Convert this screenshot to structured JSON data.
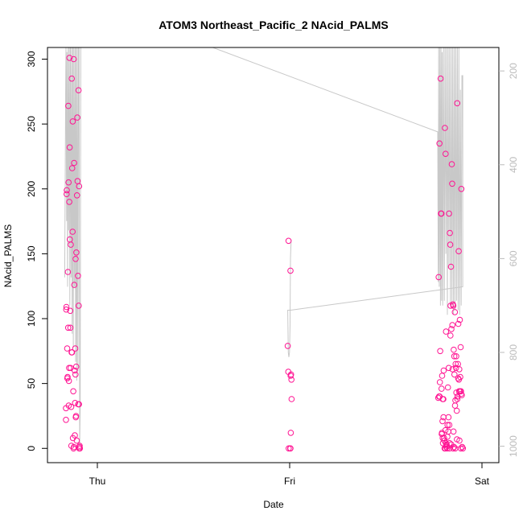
{
  "chart_data": {
    "type": "scatter",
    "title": "ATOM3 Northeast_Pacific_2 NAcid_PALMS",
    "xlabel": "Date",
    "ylabel": "NAcid_PALMS",
    "x_ticks": [
      "Thu",
      "Fri",
      "Sat"
    ],
    "y_ticks": [
      0,
      50,
      100,
      150,
      200,
      250,
      300
    ],
    "y2_ticks": [
      200,
      400,
      600,
      800,
      1000
    ],
    "ylim": [
      -11,
      309
    ],
    "y2lim": [
      1035,
      150
    ],
    "xlim": [
      -0.2,
      2.1
    ],
    "grid": false,
    "legend": "none",
    "colors": {
      "points": "#ff1493",
      "altitude_line": "#c8c8c8",
      "right_axis": "#bbbbbb",
      "axis": "#000000"
    },
    "series": [
      {
        "values": [
          [
            -0.163,
            31
          ],
          [
            -0.163,
            22
          ],
          [
            -0.162,
            107
          ],
          [
            -0.161,
            109
          ],
          [
            -0.16,
            196
          ],
          [
            -0.159,
            199
          ],
          [
            -0.157,
            77
          ],
          [
            -0.156,
            54
          ],
          [
            -0.155,
            55
          ],
          [
            -0.153,
            136
          ],
          [
            -0.152,
            93
          ],
          [
            -0.151,
            264
          ],
          [
            -0.15,
            205
          ],
          [
            -0.149,
            33
          ],
          [
            -0.148,
            52
          ],
          [
            -0.147,
            62
          ],
          [
            -0.146,
            190
          ],
          [
            -0.145,
            301
          ],
          [
            -0.144,
            232
          ],
          [
            -0.143,
            161
          ],
          [
            -0.141,
            106
          ],
          [
            -0.14,
            93
          ],
          [
            -0.139,
            62
          ],
          [
            -0.138,
            157
          ],
          [
            -0.136,
            32
          ],
          [
            -0.135,
            2
          ],
          [
            -0.134,
            74
          ],
          [
            -0.133,
            285
          ],
          [
            -0.132,
            74
          ],
          [
            -0.131,
            216
          ],
          [
            -0.129,
            167
          ],
          [
            -0.128,
            252
          ],
          [
            -0.127,
            8
          ],
          [
            -0.125,
            44
          ],
          [
            -0.124,
            0
          ],
          [
            -0.123,
            300
          ],
          [
            -0.122,
            1
          ],
          [
            -0.121,
            220
          ],
          [
            -0.12,
            126
          ],
          [
            -0.118,
            60
          ],
          [
            -0.117,
            10
          ],
          [
            -0.116,
            35
          ],
          [
            -0.115,
            77
          ],
          [
            -0.114,
            57
          ],
          [
            -0.113,
            146
          ],
          [
            -0.112,
            24
          ],
          [
            -0.111,
            25
          ],
          [
            -0.11,
            63
          ],
          [
            -0.109,
            151
          ],
          [
            -0.107,
            6
          ],
          [
            -0.106,
            195
          ],
          [
            -0.104,
            255
          ],
          [
            -0.103,
            206
          ],
          [
            -0.101,
            133
          ],
          [
            -0.099,
            34
          ],
          [
            -0.098,
            276
          ],
          [
            -0.097,
            110
          ],
          [
            -0.096,
            34
          ],
          [
            -0.095,
            202
          ],
          [
            -0.094,
            0
          ],
          [
            -0.093,
            1
          ],
          [
            -0.092,
            2
          ],
          [
            -0.091,
            0
          ],
          [
            0.99,
            79
          ],
          [
            0.993,
            59
          ],
          [
            0.994,
            160
          ],
          [
            0.995,
            0
          ],
          [
            1.003,
            0
          ],
          [
            1.004,
            137
          ],
          [
            1.005,
            56
          ],
          [
            1.006,
            12
          ],
          [
            1.007,
            57
          ],
          [
            1.009,
            53
          ],
          [
            1.01,
            38
          ],
          [
            1.004,
            0
          ],
          [
            1.773,
            39
          ],
          [
            1.775,
            132
          ],
          [
            1.777,
            40
          ],
          [
            1.779,
            235
          ],
          [
            1.781,
            51
          ],
          [
            1.783,
            75
          ],
          [
            1.785,
            285
          ],
          [
            1.787,
            181
          ],
          [
            1.789,
            181
          ],
          [
            1.791,
            11
          ],
          [
            1.793,
            56
          ],
          [
            1.795,
            21
          ],
          [
            1.797,
            4
          ],
          [
            1.799,
            38
          ],
          [
            1.801,
            60
          ],
          [
            1.803,
            8
          ],
          [
            1.805,
            6
          ],
          [
            1.807,
            247
          ],
          [
            1.809,
            0
          ],
          [
            1.811,
            227
          ],
          [
            1.813,
            90
          ],
          [
            1.815,
            1
          ],
          [
            1.817,
            2
          ],
          [
            1.819,
            0
          ],
          [
            1.821,
            18
          ],
          [
            1.823,
            47
          ],
          [
            1.825,
            13
          ],
          [
            1.827,
            62
          ],
          [
            1.829,
            181
          ],
          [
            1.831,
            0
          ],
          [
            1.833,
            166
          ],
          [
            1.835,
            157
          ],
          [
            1.837,
            110
          ],
          [
            1.839,
            140
          ],
          [
            1.841,
            92
          ],
          [
            1.843,
            219
          ],
          [
            1.845,
            204
          ],
          [
            1.847,
            61
          ],
          [
            1.849,
            111
          ],
          [
            1.851,
            110
          ],
          [
            1.853,
            76
          ],
          [
            1.855,
            1
          ],
          [
            1.857,
            57
          ],
          [
            1.859,
            105
          ],
          [
            1.861,
            0
          ],
          [
            1.863,
            65
          ],
          [
            1.865,
            62
          ],
          [
            1.867,
            43
          ],
          [
            1.869,
            29
          ],
          [
            1.871,
            266
          ],
          [
            1.873,
            40
          ],
          [
            1.875,
            65
          ],
          [
            1.877,
            96
          ],
          [
            1.879,
            152
          ],
          [
            1.881,
            44
          ],
          [
            1.883,
            6
          ],
          [
            1.885,
            99
          ],
          [
            1.887,
            55
          ],
          [
            1.889,
            78
          ],
          [
            1.891,
            44
          ],
          [
            1.893,
            200
          ],
          [
            1.895,
            41
          ],
          [
            1.897,
            1
          ],
          [
            1.901,
            0
          ],
          [
            1.78,
            40
          ],
          [
            1.79,
            46
          ],
          [
            1.8,
            24
          ],
          [
            1.81,
            14
          ],
          [
            1.82,
            9
          ],
          [
            1.83,
            18
          ],
          [
            1.84,
            3
          ],
          [
            1.85,
            0
          ],
          [
            1.86,
            33
          ],
          [
            1.87,
            7
          ],
          [
            1.88,
            53
          ],
          [
            1.89,
            0
          ],
          [
            1.792,
            12
          ],
          [
            1.796,
            8
          ],
          [
            1.806,
            0
          ],
          [
            1.816,
            3
          ],
          [
            1.826,
            24
          ],
          [
            1.836,
            87
          ],
          [
            1.846,
            95
          ],
          [
            1.856,
            71
          ],
          [
            1.866,
            71
          ],
          [
            1.876,
            54
          ],
          [
            1.886,
            44
          ],
          [
            1.796,
            38
          ],
          [
            1.812,
            4
          ],
          [
            1.832,
            4
          ],
          [
            1.852,
            13
          ],
          [
            1.862,
            37
          ],
          [
            1.872,
            38
          ],
          [
            1.882,
            61
          ],
          [
            1.892,
            42
          ]
        ]
      }
    ],
    "altitude_line": [
      [
        -0.17,
        640
      ],
      [
        -0.165,
        250
      ],
      [
        -0.163,
        120
      ],
      [
        -0.16,
        520
      ],
      [
        -0.158,
        160
      ],
      [
        -0.155,
        660
      ],
      [
        -0.152,
        120
      ],
      [
        -0.149,
        540
      ],
      [
        -0.146,
        150
      ],
      [
        -0.143,
        700
      ],
      [
        -0.14,
        130
      ],
      [
        -0.137,
        640
      ],
      [
        -0.134,
        150
      ],
      [
        -0.131,
        760
      ],
      [
        -0.128,
        120
      ],
      [
        -0.125,
        790
      ],
      [
        -0.122,
        140
      ],
      [
        -0.119,
        660
      ],
      [
        -0.116,
        120
      ],
      [
        -0.113,
        820
      ],
      [
        -0.11,
        140
      ],
      [
        -0.107,
        860
      ],
      [
        -0.104,
        130
      ],
      [
        -0.101,
        840
      ],
      [
        -0.098,
        130
      ],
      [
        -0.095,
        140
      ],
      [
        -0.092,
        1000
      ],
      [
        -0.089,
        920
      ],
      [
        -0.086,
        150
      ],
      [
        0.6,
        150
      ],
      [
        1.77,
        330
      ],
      [
        1.773,
        650
      ],
      [
        1.775,
        140
      ],
      [
        1.778,
        660
      ],
      [
        1.781,
        140
      ],
      [
        1.784,
        700
      ],
      [
        1.787,
        130
      ],
      [
        1.79,
        690
      ],
      [
        1.793,
        160
      ],
      [
        1.796,
        700
      ],
      [
        1.8,
        140
      ],
      [
        1.804,
        690
      ],
      [
        1.808,
        150
      ],
      [
        1.812,
        590
      ],
      [
        1.816,
        130
      ],
      [
        1.82,
        720
      ],
      [
        1.824,
        140
      ],
      [
        1.828,
        620
      ],
      [
        1.832,
        150
      ],
      [
        1.836,
        700
      ],
      [
        1.84,
        130
      ],
      [
        1.844,
        700
      ],
      [
        1.848,
        140
      ],
      [
        1.852,
        720
      ],
      [
        1.856,
        140
      ],
      [
        1.86,
        710
      ],
      [
        1.864,
        150
      ],
      [
        1.868,
        690
      ],
      [
        1.872,
        140
      ],
      [
        1.876,
        710
      ],
      [
        1.88,
        130
      ],
      [
        1.884,
        720
      ],
      [
        1.888,
        240
      ],
      [
        1.892,
        700
      ],
      [
        1.896,
        210
      ],
      [
        1.9,
        210
      ],
      [
        1.9,
        660
      ],
      [
        1.005,
        710
      ],
      [
        0.99,
        710
      ],
      [
        0.993,
        800
      ],
      [
        0.996,
        810
      ],
      [
        0.999,
        800
      ],
      [
        1.002,
        740
      ],
      [
        1.004,
        600
      ],
      [
        1.006,
        580
      ],
      [
        1.008,
        560
      ]
    ]
  }
}
